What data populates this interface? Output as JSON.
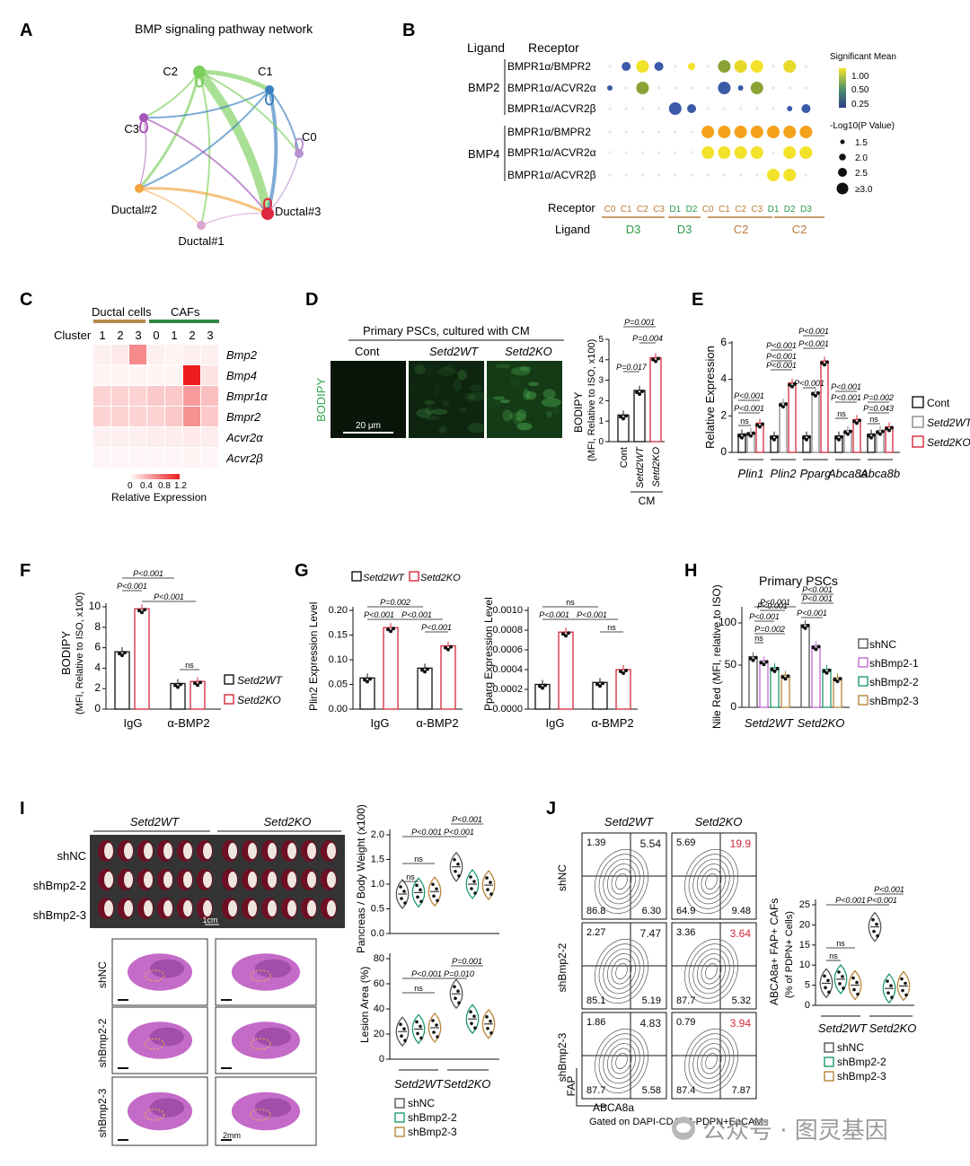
{
  "panels": {
    "A": {
      "letter": "A",
      "title": "BMP signaling pathway network",
      "nodes": [
        {
          "label": "C2",
          "color": "#7ccf5c"
        },
        {
          "label": "C1",
          "color": "#3a7fbf"
        },
        {
          "label": "C0",
          "color": "#b690d0"
        },
        {
          "label": "C3",
          "color": "#a855b8"
        },
        {
          "label": "Ductal#2",
          "color": "#f2a33c"
        },
        {
          "label": "Ductal#1",
          "color": "#d9a6d4"
        },
        {
          "label": "Ductal#3",
          "color": "#e0253e"
        }
      ]
    },
    "B": {
      "letter": "B",
      "ligand_header": "Ligand",
      "receptor_header": "Receptor",
      "ligands": [
        "BMP2",
        "BMP4"
      ],
      "receptors": [
        "BMPR1α/BMPR2",
        "BMPR1α/ACVR2α",
        "BMPR1α/ACVR2β",
        "BMPR1α/BMPR2",
        "BMPR1α/ACVR2α",
        "BMPR1α/ACVR2β"
      ],
      "x_receptor_label": "Receptor",
      "x_ligand_label": "Ligand",
      "columns": [
        "C0",
        "C1",
        "C2",
        "C3",
        "D1",
        "D2",
        "C0",
        "C1",
        "C2",
        "C3",
        "D1",
        "D2",
        "D3"
      ],
      "column_groups": [
        {
          "label": "D3",
          "color": "#2e9a4a"
        },
        {
          "label": "D3",
          "color": "#2e9a4a"
        },
        {
          "label": "C2",
          "color": "#b87c3b"
        },
        {
          "label": "C2",
          "color": "#b87c3b"
        }
      ],
      "legend_title": "Significant Mean",
      "legend_ticks": [
        "1.00",
        "0.50",
        "0.25"
      ],
      "size_title": "-Log10(P Value)",
      "size_labels": [
        "1.5",
        "2.0",
        "2.5",
        "≥3.0"
      ]
    },
    "C": {
      "letter": "C",
      "group1": "Ductal cells",
      "group2": "CAFs",
      "cluster_label": "Cluster",
      "clusters": [
        "1",
        "2",
        "3",
        "0",
        "1",
        "2",
        "3"
      ],
      "genes": [
        "Bmp2",
        "Bmp4",
        "Bmpr1α",
        "Bmpr2",
        "Acvr2α",
        "Acvr2β"
      ],
      "scale_ticks": [
        "0",
        "0.4",
        "0.8",
        "1.2"
      ],
      "scale_label": "Relative Expression"
    },
    "D": {
      "letter": "D",
      "title": "Primary PSCs, cultured with CM",
      "cols": [
        "Cont",
        "Setd2WT",
        "Setd2KO"
      ],
      "stain": "BODIPY",
      "scalebar": "20 μm",
      "ylabel": "BODIPY",
      "ylabel2": "(MFI, Relative to ISO, x100)",
      "cm_label": "CM",
      "pvals": [
        "P=0.001",
        "P=0.004",
        "P=0.017"
      ],
      "yticks": [
        "0",
        "1",
        "2",
        "3",
        "4",
        "5"
      ]
    },
    "E": {
      "letter": "E",
      "ylabel": "Relative Expression",
      "yticks": [
        "0",
        "2",
        "4",
        "6"
      ],
      "genes": [
        "Plin1",
        "Plin2",
        "Pparg",
        "Abca8a",
        "Abca8b"
      ],
      "legend": [
        "Cont",
        "Setd2WT",
        "Setd2KO"
      ],
      "pvals": [
        "P<0.001",
        "P<0.001",
        "ns",
        "P<0.001",
        "P<0.001",
        "P<0.001",
        "P<0.001",
        "P<0.001",
        "P<0.001",
        "P<0.001",
        "P<0.001",
        "P<0.001",
        "ns",
        "P=0.002",
        "P=0.043",
        "ns"
      ]
    },
    "F": {
      "letter": "F",
      "ylabel": "BODIPY",
      "ylabel2": "(MFI, Relative to ISO, x100)",
      "yticks": [
        "0",
        "2",
        "4",
        "6",
        "8",
        "10"
      ],
      "groups": [
        "IgG",
        "α-BMP2"
      ],
      "legend": [
        "Setd2WT",
        "Setd2KO"
      ],
      "pvals": [
        "P<0.001",
        "P<0.001",
        "P<0.001",
        "ns"
      ]
    },
    "G": {
      "letter": "G",
      "legend": [
        "Setd2WT",
        "Setd2KO"
      ],
      "left": {
        "ylabel": "Plin2 Expression Level",
        "yticks": [
          "0.00",
          "0.05",
          "0.10",
          "0.15",
          "0.20"
        ],
        "pvals": [
          "P=0.002",
          "P<0.001",
          "P<0.001",
          "P<0.001"
        ]
      },
      "right": {
        "ylabel": "Pparg Expression Level",
        "yticks": [
          "0.0000",
          "0.0002",
          "0.0004",
          "0.0006",
          "0.0008",
          "0.0010"
        ],
        "pvals": [
          "ns",
          "P<0.001",
          "P<0.001",
          "ns"
        ]
      },
      "groups": [
        "IgG",
        "α-BMP2"
      ]
    },
    "H": {
      "letter": "H",
      "title": "Primary PSCs",
      "ylabel": "Nile Red (MFI, relative to ISO)",
      "yticks": [
        "0",
        "50",
        "100"
      ],
      "groups": [
        "Setd2WT",
        "Setd2KO"
      ],
      "legend": [
        "shNC",
        "shBmp2-1",
        "shBmp2-2",
        "shBmp2-3"
      ],
      "pvals": [
        "P<0.001",
        "P<0.001",
        "P<0.001",
        "P=0.002",
        "ns",
        "P<0.001",
        "P<0.001",
        "P<0.001"
      ]
    },
    "I": {
      "letter": "I",
      "col_labels": [
        "Setd2WT",
        "Setd2KO"
      ],
      "row_labels": [
        "shNC",
        "shBmp2-2",
        "shBmp2-3"
      ],
      "scale_1cm": "1cm",
      "scale_2mm": "2mm",
      "top": {
        "ylabel": "Pancreas / Body Weight (x100)",
        "yticks": [
          "0.0",
          "0.5",
          "1.0",
          "1.5",
          "2.0"
        ],
        "pvals": [
          "P<0.001",
          "P<0.001",
          "P<0.001",
          "ns",
          "ns"
        ]
      },
      "bottom": {
        "ylabel": "Lesion Area (%)",
        "yticks": [
          "0",
          "20",
          "40",
          "60",
          "80"
        ],
        "pvals": [
          "P=0.001",
          "P<0.001",
          "P=0.010",
          "ns"
        ]
      },
      "groups": [
        "Setd2WT",
        "Setd2KO"
      ],
      "legend": [
        "shNC",
        "shBmp2-2",
        "shBmp2-3"
      ]
    },
    "J": {
      "letter": "J",
      "col_labels": [
        "Setd2WT",
        "Setd2KO"
      ],
      "row_labels": [
        "shNC",
        "shBmp2-2",
        "shBmp2-3"
      ],
      "quads": [
        [
          "1.39",
          "5.54",
          "86.8",
          "6.30"
        ],
        [
          "5.69",
          "19.9",
          "64.9",
          "9.48"
        ],
        [
          "2.27",
          "7.47",
          "85.1",
          "5.19"
        ],
        [
          "3.36",
          "3.64",
          "87.7",
          "5.32"
        ],
        [
          "1.86",
          "4.83",
          "87.7",
          "5.58"
        ],
        [
          "0.79",
          "3.94",
          "87.4",
          "7.87"
        ]
      ],
      "xaxis": "ABCA8a",
      "yaxis": "FAP",
      "gate": "Gated on DAPI-CD45.2-PDPN+EpCAM-",
      "violin": {
        "ylabel": "ABCA8a+ FAP+ CAFs",
        "ylabel2": "(% of PDPN+ Cells)",
        "yticks": [
          "0",
          "5",
          "10",
          "15",
          "20",
          "25"
        ],
        "pvals": [
          "P<0.001",
          "P<0.001",
          "P<0.001",
          "ns",
          "ns"
        ]
      },
      "groups": [
        "Setd2WT",
        "Setd2KO"
      ],
      "legend": [
        "shNC",
        "shBmp2-2",
        "shBmp2-3"
      ]
    }
  },
  "watermark": "公众号 · 图灵基因",
  "chart_data": [
    {
      "panel": "D",
      "type": "bar",
      "categories": [
        "Cont",
        "Setd2WT",
        "Setd2KO"
      ],
      "values": [
        1.3,
        2.5,
        4.1
      ],
      "ylim": [
        0,
        5
      ],
      "ylabel": "BODIPY"
    },
    {
      "panel": "E",
      "type": "bar",
      "categories": [
        "Plin1",
        "Plin2",
        "Pparg",
        "Abca8a",
        "Abca8b"
      ],
      "series": [
        {
          "name": "Cont",
          "values": [
            1.0,
            0.9,
            0.9,
            0.9,
            1.0
          ]
        },
        {
          "name": "Setd2WT",
          "values": [
            1.1,
            2.7,
            3.3,
            1.2,
            1.2
          ]
        },
        {
          "name": "Setd2KO",
          "values": [
            1.6,
            3.8,
            5.0,
            1.8,
            1.4
          ]
        }
      ],
      "ylim": [
        0,
        6
      ],
      "ylabel": "Relative Expression"
    },
    {
      "panel": "F",
      "type": "bar",
      "categories": [
        "IgG",
        "α-BMP2"
      ],
      "series": [
        {
          "name": "Setd2WT",
          "values": [
            5.6,
            2.5
          ]
        },
        {
          "name": "Setd2KO",
          "values": [
            9.8,
            2.7
          ]
        }
      ],
      "ylim": [
        0,
        10
      ],
      "ylabel": "BODIPY"
    },
    {
      "panel": "G-left",
      "type": "bar",
      "categories": [
        "IgG",
        "α-BMP2"
      ],
      "series": [
        {
          "name": "Setd2WT",
          "values": [
            0.063,
            0.083
          ]
        },
        {
          "name": "Setd2KO",
          "values": [
            0.165,
            0.128
          ]
        }
      ],
      "ylim": [
        0,
        0.2
      ],
      "ylabel": "Plin2 Expression Level"
    },
    {
      "panel": "G-right",
      "type": "bar",
      "categories": [
        "IgG",
        "α-BMP2"
      ],
      "series": [
        {
          "name": "Setd2WT",
          "values": [
            0.00025,
            0.00027
          ]
        },
        {
          "name": "Setd2KO",
          "values": [
            0.00078,
            0.0004
          ]
        }
      ],
      "ylim": [
        0,
        0.001
      ],
      "ylabel": "Pparg Expression Level"
    },
    {
      "panel": "H",
      "type": "bar",
      "categories": [
        "Setd2WT",
        "Setd2KO"
      ],
      "series": [
        {
          "name": "shNC",
          "values": [
            60,
            98
          ]
        },
        {
          "name": "shBmp2-1",
          "values": [
            55,
            73
          ]
        },
        {
          "name": "shBmp2-2",
          "values": [
            47,
            45
          ]
        },
        {
          "name": "shBmp2-3",
          "values": [
            38,
            35
          ]
        }
      ],
      "ylim": [
        0,
        100
      ],
      "ylabel": "Nile Red (MFI, relative to ISO)"
    },
    {
      "panel": "I-top",
      "type": "scatter",
      "categories": [
        "Setd2WT shNC",
        "Setd2WT shBmp2-2",
        "Setd2WT shBmp2-3",
        "Setd2KO shNC",
        "Setd2KO shBmp2-2",
        "Setd2KO shBmp2-3"
      ],
      "values": [
        0.8,
        0.83,
        0.85,
        1.35,
        1.0,
        0.98
      ],
      "ylim": [
        0,
        2
      ],
      "ylabel": "Pancreas / Body Weight (x100)"
    },
    {
      "panel": "I-bottom",
      "type": "scatter",
      "categories": [
        "Setd2WT shNC",
        "Setd2WT shBmp2-2",
        "Setd2WT shBmp2-3",
        "Setd2KO shNC",
        "Setd2KO shBmp2-2",
        "Setd2KO shBmp2-3"
      ],
      "values": [
        22,
        24,
        25,
        52,
        32,
        28
      ],
      "ylim": [
        0,
        80
      ],
      "ylabel": "Lesion Area (%)"
    },
    {
      "panel": "J-violin",
      "type": "scatter",
      "categories": [
        "Setd2WT shNC",
        "Setd2WT shBmp2-2",
        "Setd2WT shBmp2-3",
        "Setd2KO shNC",
        "Setd2KO shBmp2-2",
        "Setd2KO shBmp2-3"
      ],
      "values": [
        5.5,
        6.5,
        5.0,
        19.5,
        4.2,
        4.8
      ],
      "ylim": [
        0,
        25
      ],
      "ylabel": "ABCA8a+ FAP+ CAFs"
    }
  ]
}
